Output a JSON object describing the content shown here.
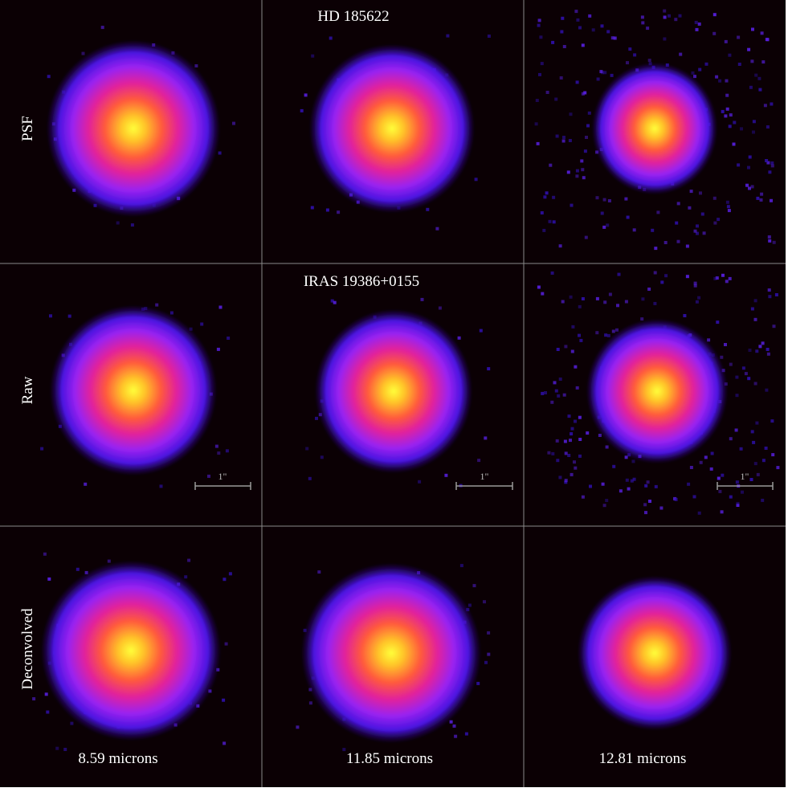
{
  "titles": [
    "HD 185622",
    "IRAS 19386+0155"
  ],
  "rows": [
    "PSF",
    "Raw",
    "Deconvolved"
  ],
  "columns": [
    "8.59 microns",
    "11.85 microns",
    "12.81 microns"
  ],
  "scale_bars": [
    "1\"",
    "1\"",
    "1\""
  ]
}
